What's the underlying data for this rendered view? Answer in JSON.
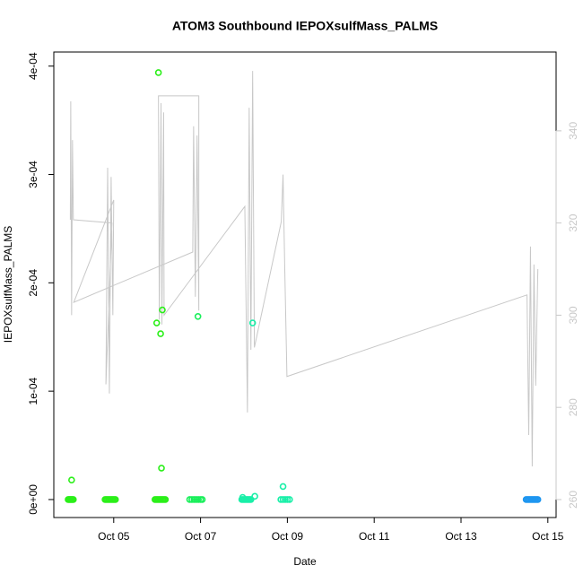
{
  "chart_data": {
    "type": "scatter",
    "title": "ATOM3 Southbound IEPOXsulfMass_PALMS",
    "xlabel": "Date",
    "ylabel": "IEPOXsulfMass_PALMS",
    "xlim": [
      3.62,
      15.19
    ],
    "xticks": [
      {
        "value": 5,
        "label": "Oct 05"
      },
      {
        "value": 7,
        "label": "Oct 07"
      },
      {
        "value": 9,
        "label": "Oct 09"
      },
      {
        "value": 11,
        "label": "Oct 11"
      },
      {
        "value": 13,
        "label": "Oct 13"
      },
      {
        "value": 15,
        "label": "Oct 15"
      }
    ],
    "ylim": [
      -1.66e-05,
      0.000413
    ],
    "yticks": [
      {
        "value": 0,
        "label": "0e+00"
      },
      {
        "value": 0.0001,
        "label": "1e-04"
      },
      {
        "value": 0.0002,
        "label": "2e-04"
      },
      {
        "value": 0.0003,
        "label": "3e-04"
      },
      {
        "value": 0.0004,
        "label": "4e-04"
      }
    ],
    "y2lim": [
      256.1,
      357.1
    ],
    "y2ticks": [
      260,
      280,
      300,
      320,
      340
    ],
    "series": [
      {
        "mode": "line",
        "axis": "y2",
        "color": "#c8c8c8",
        "x": [
          4.0,
          4.01,
          4.03,
          4.05,
          4.07,
          4.96,
          4.82,
          4.86,
          4.9,
          4.94,
          4.98,
          5.0,
          4.08,
          6.82,
          6.84,
          6.88,
          6.92,
          6.96,
          6.96,
          6.03,
          6.05,
          6.09,
          6.11,
          6.15,
          6.16,
          8.02,
          8.08,
          8.12,
          8.16,
          8.2,
          8.24,
          8.86,
          8.9,
          8.94,
          8.99,
          14.52,
          14.56,
          14.6,
          14.64,
          14.68,
          14.72,
          14.77
        ],
        "values": [
          320.7,
          346.4,
          300,
          338,
          320.7,
          320.0,
          285,
          332,
          283,
          330,
          300,
          325,
          302.8,
          313.7,
          341,
          304,
          339,
          301,
          347.6,
          347.6,
          299,
          346,
          298,
          344,
          300,
          323.6,
          278.9,
          345,
          292.5,
          353,
          293,
          320.3,
          330.5,
          310,
          286.7,
          304.4,
          274,
          314.9,
          267.2,
          311,
          284.7,
          310
        ]
      },
      {
        "mode": "points",
        "color": "#2bef19",
        "x": [
          3.95,
          3.97,
          3.99,
          4.01,
          4.03,
          4.05,
          4.07,
          4.03,
          4.8,
          4.83,
          4.86,
          4.89,
          4.92,
          4.95,
          4.98,
          5.01,
          5.04,
          5.95,
          5.98,
          6.01,
          6.04,
          6.07,
          6.1,
          6.13,
          6.16,
          6.19,
          6.03,
          5.99,
          6.08,
          6.12,
          6.1
        ],
        "values": [
          0,
          0,
          0,
          0,
          0,
          0,
          0,
          1.8e-05,
          0,
          0,
          0,
          0,
          0,
          0,
          0,
          0,
          0,
          0,
          0,
          0,
          0,
          0,
          0,
          0,
          0,
          0,
          0.000394,
          0.000163,
          0.000153,
          0.000175,
          2.9e-05
        ]
      },
      {
        "mode": "points",
        "color": "#19ef5a",
        "x": [
          6.75,
          6.8,
          6.85,
          6.9,
          6.95,
          7.0,
          7.04,
          6.94
        ],
        "values": [
          0,
          0,
          0,
          0,
          0,
          0,
          0,
          0.000169
        ]
      },
      {
        "mode": "points",
        "color": "#19efa8",
        "x": [
          7.95,
          7.98,
          8.01,
          8.04,
          8.07,
          8.1,
          8.13,
          8.16,
          8.2,
          8.25,
          7.97,
          8.85,
          8.9,
          8.95,
          9.0,
          9.05,
          8.9
        ],
        "values": [
          0,
          0,
          0,
          0,
          0,
          0,
          0,
          0,
          0.000163,
          3e-06,
          2e-06,
          0,
          0,
          0,
          0,
          0,
          1.2e-05
        ]
      },
      {
        "mode": "points",
        "color": "#1e96f0",
        "x": [
          14.5,
          14.53,
          14.56,
          14.59,
          14.62,
          14.65,
          14.68,
          14.71,
          14.74,
          14.77
        ],
        "values": [
          0,
          0,
          0,
          0,
          0,
          0,
          0,
          0,
          0,
          0
        ]
      }
    ]
  }
}
